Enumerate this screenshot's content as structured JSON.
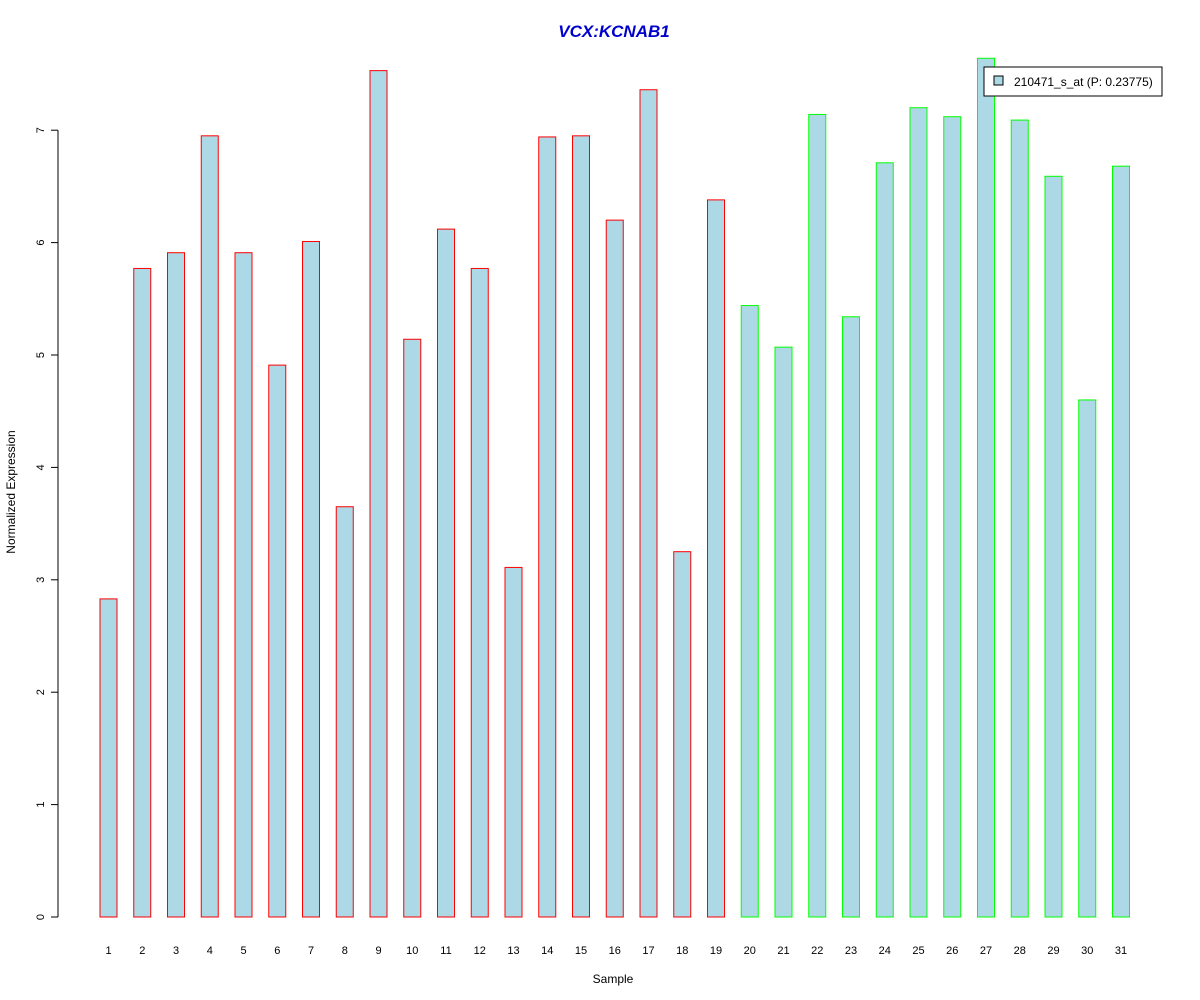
{
  "chart_data": {
    "type": "bar",
    "title": "VCX:KCNAB1",
    "xlabel": "Sample",
    "ylabel": "Normalized Expression",
    "categories": [
      "1",
      "2",
      "3",
      "4",
      "5",
      "6",
      "7",
      "8",
      "9",
      "10",
      "11",
      "12",
      "13",
      "14",
      "15",
      "16",
      "17",
      "18",
      "19",
      "20",
      "21",
      "22",
      "23",
      "24",
      "25",
      "26",
      "27",
      "28",
      "29",
      "30",
      "31"
    ],
    "series": [
      {
        "name": "210471_s_at (P: 0.23775)",
        "values": [
          2.83,
          5.77,
          5.91,
          6.95,
          5.91,
          4.91,
          6.01,
          3.65,
          7.53,
          5.14,
          6.12,
          5.77,
          3.11,
          6.94,
          6.95,
          6.2,
          7.36,
          3.25,
          6.38,
          5.44,
          5.07,
          7.14,
          5.34,
          6.71,
          7.2,
          7.12,
          7.64,
          7.09,
          6.59,
          4.6,
          6.68
        ]
      }
    ],
    "groups": [
      1,
      1,
      1,
      1,
      1,
      1,
      1,
      1,
      1,
      1,
      1,
      1,
      1,
      1,
      1,
      1,
      1,
      1,
      1,
      2,
      2,
      2,
      2,
      2,
      2,
      2,
      2,
      2,
      2,
      2,
      2
    ],
    "yticks": [
      0,
      1,
      2,
      3,
      4,
      5,
      6,
      7
    ],
    "ylim": [
      0,
      7.64
    ],
    "grid": false,
    "legend_position": "top-right",
    "colors": {
      "bar_fill": "#add8e6",
      "group1_border": "#ff0000",
      "group2_border": "#00ff00",
      "title": "#0000cd",
      "axis": "#000000"
    }
  }
}
